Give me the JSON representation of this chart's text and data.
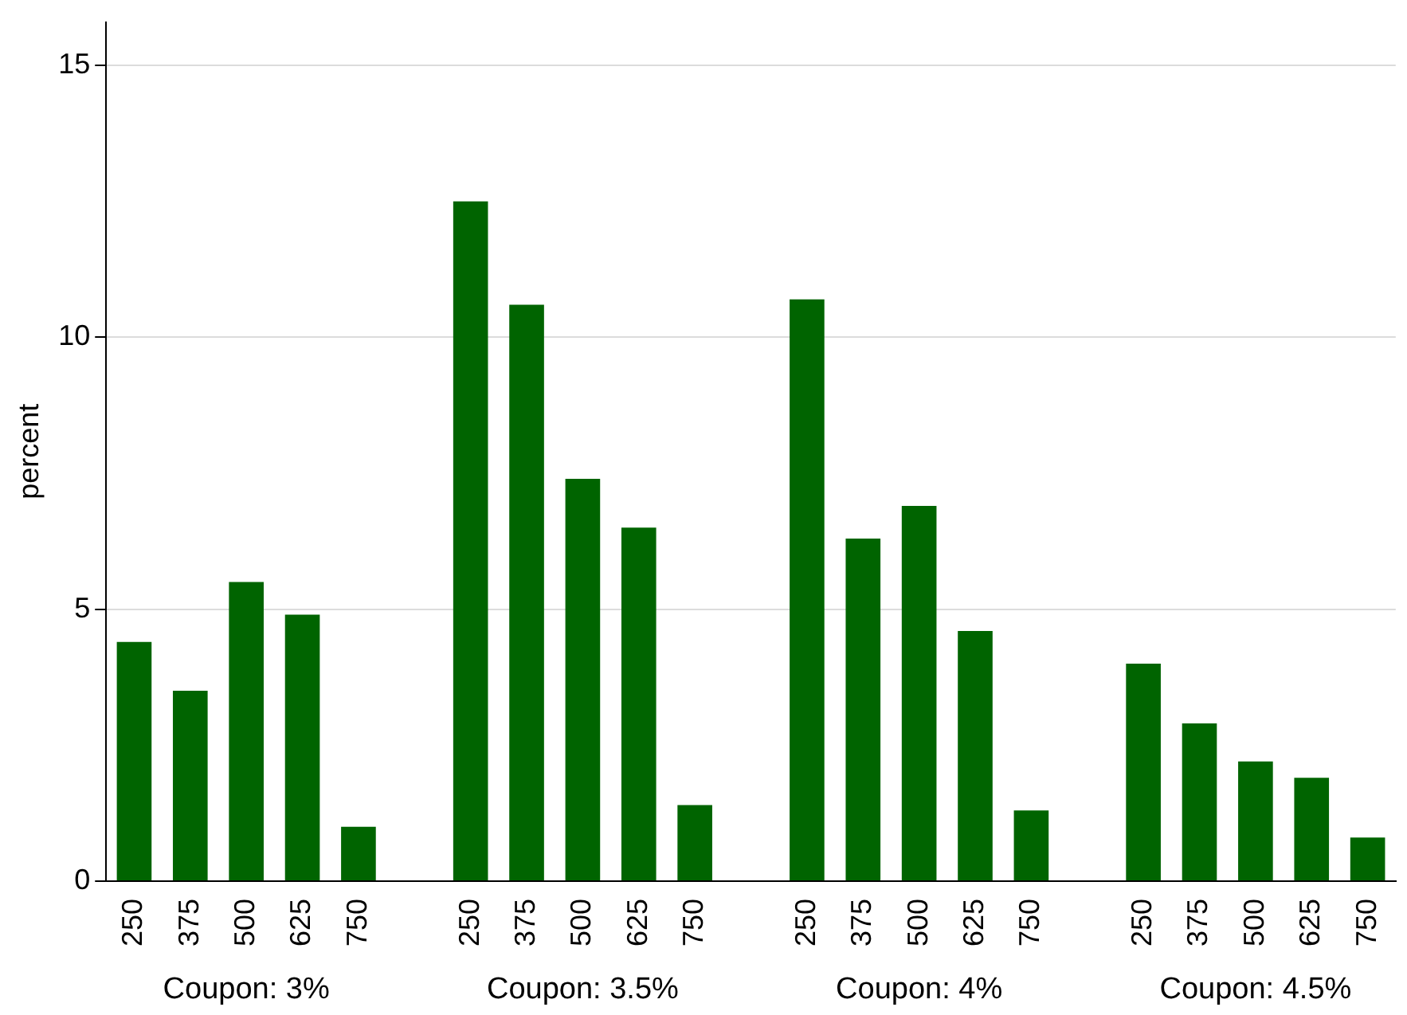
{
  "chart_data": {
    "type": "bar",
    "ylabel": "percent",
    "categories": [
      "250",
      "375",
      "500",
      "625",
      "750",
      null,
      "250",
      "375",
      "500",
      "625",
      "750",
      null,
      "250",
      "375",
      "500",
      "625",
      "750",
      null,
      "250",
      "375",
      "500",
      "625",
      "750"
    ],
    "values": [
      4.4,
      3.5,
      5.5,
      4.9,
      1.0,
      null,
      12.5,
      10.6,
      7.4,
      6.5,
      1.4,
      null,
      10.7,
      6.3,
      6.9,
      4.6,
      1.3,
      null,
      4.0,
      2.9,
      2.2,
      1.9,
      0.8
    ],
    "color": "#006400",
    "ylim": [
      0,
      15.8
    ],
    "yticks": [
      0,
      5,
      10,
      15
    ],
    "grid": "y",
    "annotations": [
      "Coupon: 3%",
      "Coupon: 3.5%",
      "Coupon: 4%",
      "Coupon: 4.5%"
    ]
  }
}
